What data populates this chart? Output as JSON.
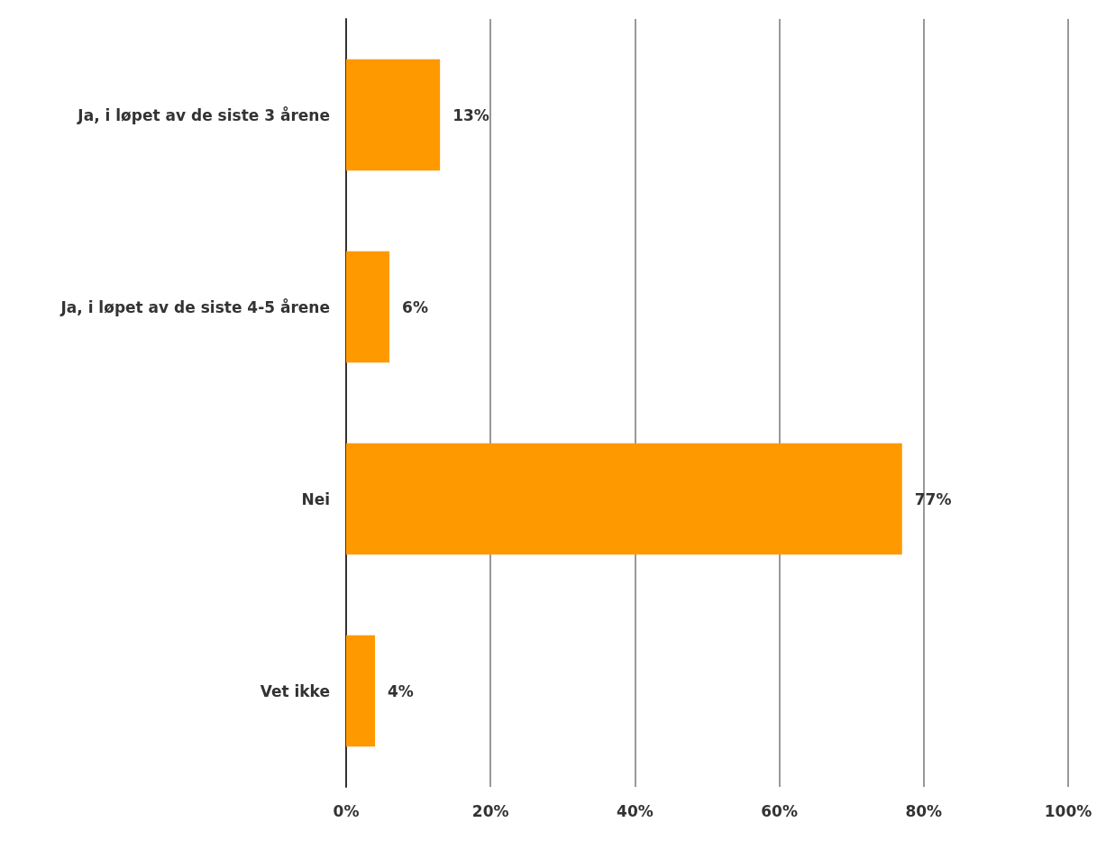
{
  "chart_data": {
    "type": "bar",
    "orientation": "horizontal",
    "categories": [
      "Ja, i løpet av de siste 3 årene",
      "Ja, i løpet av de siste 4-5 årene",
      "Nei",
      "Vet ikke"
    ],
    "values": [
      13,
      6,
      77,
      4
    ],
    "color": "#ff9900",
    "value_labels": [
      "13%",
      "6%",
      "77%",
      "4%"
    ],
    "xlim": [
      0,
      100
    ],
    "xticks": [
      {
        "value": 0,
        "label": "0%"
      },
      {
        "value": 20,
        "label": "20%"
      },
      {
        "value": 40,
        "label": "40%"
      },
      {
        "value": 60,
        "label": "60%"
      },
      {
        "value": 80,
        "label": "80%"
      },
      {
        "value": 100,
        "label": "100%"
      }
    ],
    "grid": "x"
  }
}
